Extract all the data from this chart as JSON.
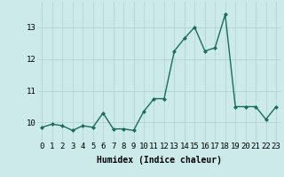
{
  "x": [
    0,
    1,
    2,
    3,
    4,
    5,
    6,
    7,
    8,
    9,
    10,
    11,
    12,
    13,
    14,
    15,
    16,
    17,
    18,
    19,
    20,
    21,
    22,
    23
  ],
  "y": [
    9.85,
    9.95,
    9.9,
    9.75,
    9.9,
    9.85,
    10.3,
    9.8,
    9.8,
    9.75,
    10.35,
    10.75,
    10.75,
    12.25,
    12.65,
    13.0,
    12.25,
    12.35,
    13.4,
    10.5,
    10.5,
    10.5,
    10.1,
    10.5
  ],
  "line_color": "#1a6b5e",
  "marker": "D",
  "marker_size": 2.0,
  "linewidth": 1.0,
  "background_color": "#cceaea",
  "grid_color": "#b0d0d0",
  "xlabel": "Humidex (Indice chaleur)",
  "xlabel_fontsize": 7,
  "xlabel_bold": true,
  "tick_fontsize": 6.5,
  "xlim": [
    -0.5,
    23.5
  ],
  "ylim": [
    9.4,
    13.8
  ],
  "yticks": [
    10,
    11,
    12,
    13
  ],
  "xticks": [
    0,
    1,
    2,
    3,
    4,
    5,
    6,
    7,
    8,
    9,
    10,
    11,
    12,
    13,
    14,
    15,
    16,
    17,
    18,
    19,
    20,
    21,
    22,
    23
  ]
}
